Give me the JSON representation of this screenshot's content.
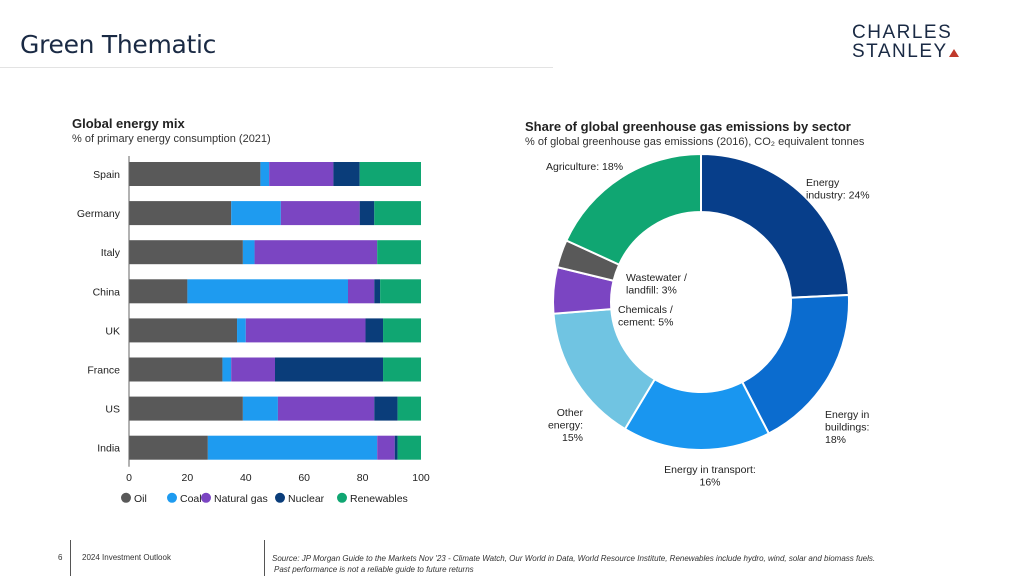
{
  "slide": {
    "title": "Green Thematic",
    "logo_line1": "CHARLES",
    "logo_line2": "STANLEY",
    "page_number": "6",
    "footer_label": "2024 Investment Outlook",
    "source_line1": "Source: JP Morgan Guide to the Markets Nov '23 - Climate Watch, Our World in Data, World Resource Institute, Renewables include hydro, wind, solar and biomass fuels.",
    "source_line2": "Past performance is not a reliable guide to future returns"
  },
  "colors": {
    "oil": "#595959",
    "coal": "#1e9bf0",
    "gas": "#7b45c2",
    "nuclear": "#0a3d7a",
    "renewables": "#10a672",
    "energy_industry": "#073e8a",
    "energy_buildings": "#0b6ccf",
    "energy_transport": "#1996f0",
    "other_energy": "#70c4e2",
    "chemicals": "#7b45c2",
    "wastewater": "#595959",
    "agriculture": "#10a672"
  },
  "chart_data": [
    {
      "type": "bar",
      "orientation": "horizontal",
      "stacked": true,
      "title": "Global energy mix",
      "subtitle": "% of primary energy consumption (2021)",
      "categories": [
        "Spain",
        "Germany",
        "Italy",
        "China",
        "UK",
        "France",
        "US",
        "India"
      ],
      "series": [
        {
          "name": "Oil",
          "values": [
            45,
            35,
            39,
            20,
            37,
            32,
            39,
            27
          ]
        },
        {
          "name": "Coal",
          "values": [
            3,
            17,
            4,
            55,
            3,
            3,
            12,
            58
          ]
        },
        {
          "name": "Natural gas",
          "values": [
            22,
            27,
            42,
            9,
            41,
            15,
            33,
            6
          ]
        },
        {
          "name": "Nuclear",
          "values": [
            9,
            5,
            0,
            2,
            6,
            37,
            8,
            1
          ]
        },
        {
          "name": "Renewables",
          "values": [
            21,
            16,
            15,
            14,
            13,
            13,
            8,
            8
          ]
        }
      ],
      "xlim": [
        0,
        100
      ],
      "xticks": [
        "0",
        "20",
        "40",
        "60",
        "80",
        "100"
      ],
      "legend": "bottom",
      "grid": false
    },
    {
      "type": "pie",
      "donut": true,
      "title": "Share of global greenhouse gas emissions by sector",
      "subtitle": "% of global greenhouse gas emissions (2016), CO₂ equivalent tonnes",
      "slices": [
        {
          "name": "Energy industry",
          "value": 24,
          "label_lines": [
            "Energy",
            "industry: 24%"
          ]
        },
        {
          "name": "Energy in buildings",
          "value": 18,
          "label_lines": [
            "Energy in",
            "buildings:",
            "18%"
          ]
        },
        {
          "name": "Energy in transport",
          "value": 16,
          "label_lines": [
            "Energy in transport:",
            "16%"
          ]
        },
        {
          "name": "Other energy",
          "value": 15,
          "label_lines": [
            "Other",
            "energy:",
            "15%"
          ]
        },
        {
          "name": "Chemicals / cement",
          "value": 5,
          "label_lines": [
            "Chemicals /",
            "cement: 5%"
          ]
        },
        {
          "name": "Wastewater / landfill",
          "value": 3,
          "label_lines": [
            "Wastewater /",
            "landfill: 3%"
          ]
        },
        {
          "name": "Agriculture",
          "value": 18,
          "label_lines": [
            "Agriculture: 18%"
          ]
        }
      ]
    }
  ]
}
